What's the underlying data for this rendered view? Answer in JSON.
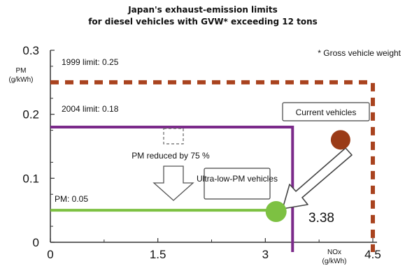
{
  "chart_data": {
    "type": "line",
    "title": "Japan's exhaust-emission limits",
    "subtitle": "for diesel vehicles with GVW* exceeding 12 tons",
    "footnote": "* Gross vehicle weight",
    "ylabel": [
      "PM",
      "(g/kWh)"
    ],
    "xlabel": [
      "NOx",
      "(g/kWh)"
    ],
    "xlim": [
      0,
      4.5
    ],
    "ylim": [
      0,
      0.3
    ],
    "x_ticks": [
      {
        "value": 0,
        "label": "0"
      },
      {
        "value": 1.5,
        "label": "1.5"
      },
      {
        "value": 3,
        "label": "3"
      },
      {
        "value": 4.5,
        "label": "4.5"
      }
    ],
    "y_ticks": [
      {
        "value": 0,
        "label": "0"
      },
      {
        "value": 0.1,
        "label": "0.1"
      },
      {
        "value": 0.2,
        "label": "0.2"
      },
      {
        "value": 0.3,
        "label": "0.3"
      }
    ],
    "limits": [
      {
        "label": "1999 limit: 0.25",
        "nox": 4.5,
        "pm": 0.25,
        "color": "#a9431f",
        "style": "dashed"
      },
      {
        "label": "2004 limit: 0.18",
        "nox": 3.38,
        "pm": 0.18,
        "color": "#7b2a8a",
        "style": "solid"
      },
      {
        "label": "PM: 0.05",
        "pm": 0.05,
        "color": "#7dc142",
        "style": "solid"
      }
    ],
    "points": [
      {
        "label": "Current vehicles",
        "x": 4.05,
        "y": 0.16,
        "color": "#9a3b17"
      },
      {
        "label": "Ultra-low-PM vehicles",
        "x": 3.15,
        "y": 0.048,
        "color": "#7dc142"
      }
    ],
    "annotations": {
      "reduction": "PM reduced by 75 %",
      "nox_value": "3.38"
    }
  }
}
